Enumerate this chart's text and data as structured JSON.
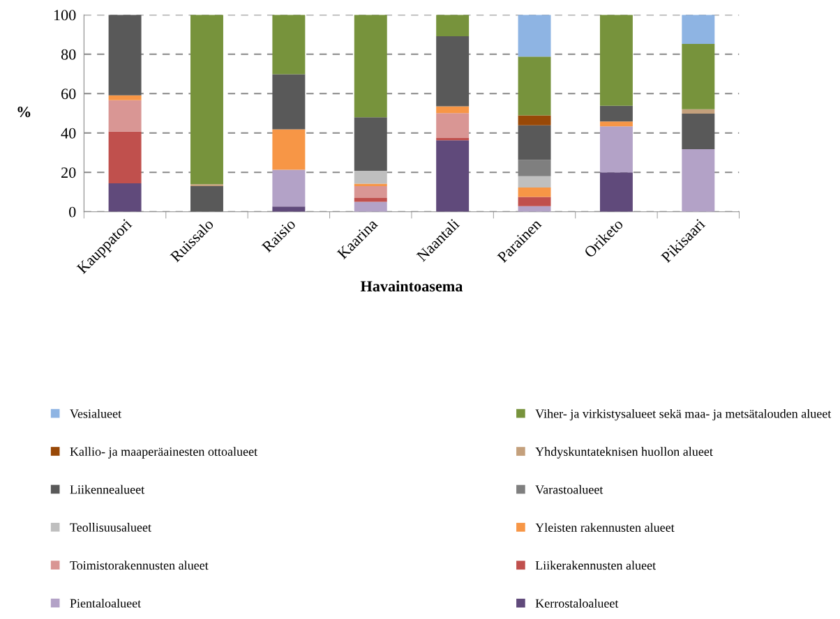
{
  "chart_data": {
    "type": "bar",
    "stacked": true,
    "xlabel": "Havaintoasema",
    "ylabel": "%",
    "categories": [
      "Kauppatori",
      "Ruissalo",
      "Raisio",
      "Kaarina",
      "Naantali",
      "Parainen",
      "Oriketo",
      "Pikisaari"
    ],
    "ylim": [
      0,
      100
    ],
    "yticks": [
      0,
      20,
      40,
      60,
      80,
      100
    ],
    "grid": "y",
    "legend": "bottom",
    "series": [
      {
        "name": "Kerrostaloalueet",
        "color": "#604a7b",
        "values": [
          14.4,
          0,
          2.6,
          0,
          36.3,
          0,
          20.0,
          0
        ]
      },
      {
        "name": "Pientaloalueet",
        "color": "#b3a2c7",
        "values": [
          0,
          0,
          18.7,
          5.0,
          0,
          2.8,
          23.4,
          31.8
        ]
      },
      {
        "name": "Liikerakennusten alueet",
        "color": "#c0504d",
        "values": [
          26.3,
          0,
          0,
          2.0,
          1.1,
          4.7,
          0,
          0
        ]
      },
      {
        "name": "Toimistorakennusten alueet",
        "color": "#d99694",
        "values": [
          15.9,
          0,
          0,
          6.0,
          12.7,
          0,
          0,
          0
        ]
      },
      {
        "name": "Yleisten rakennusten alueet",
        "color": "#f79646",
        "values": [
          2.5,
          0,
          20.6,
          1.2,
          3.4,
          4.8,
          2.4,
          0
        ]
      },
      {
        "name": "Teollisuusalueet",
        "color": "#bfbfbf",
        "values": [
          0,
          0,
          0,
          6.6,
          0,
          5.7,
          0,
          0
        ]
      },
      {
        "name": "Varastoalueet",
        "color": "#7f7f7f",
        "values": [
          0,
          0,
          0,
          0,
          0,
          8.3,
          0,
          0
        ]
      },
      {
        "name": "Liikennealueet",
        "color": "#595959",
        "values": [
          40.9,
          13.0,
          27.9,
          27.2,
          35.6,
          17.6,
          8.0,
          18.0
        ]
      },
      {
        "name": "Yhdyskuntateknisen huollon alueet",
        "color": "#c4a07c",
        "values": [
          0,
          1.0,
          0,
          0,
          0,
          0,
          0,
          2.2
        ]
      },
      {
        "name": "Kallio- ja maaperäainesten ottoalueet",
        "color": "#984807",
        "values": [
          0,
          0,
          0,
          0,
          0,
          5.0,
          0,
          0
        ]
      },
      {
        "name": "Viher- ja virkistysalueet sekä maa- ja metsätalouden alueet",
        "color": "#77933c",
        "values": [
          0,
          86.0,
          30.2,
          52.0,
          10.9,
          29.9,
          46.2,
          33.2
        ]
      },
      {
        "name": "Vesialueet",
        "color": "#8eb4e3",
        "values": [
          0,
          0,
          0,
          0,
          0,
          21.2,
          0,
          14.8
        ]
      }
    ]
  }
}
